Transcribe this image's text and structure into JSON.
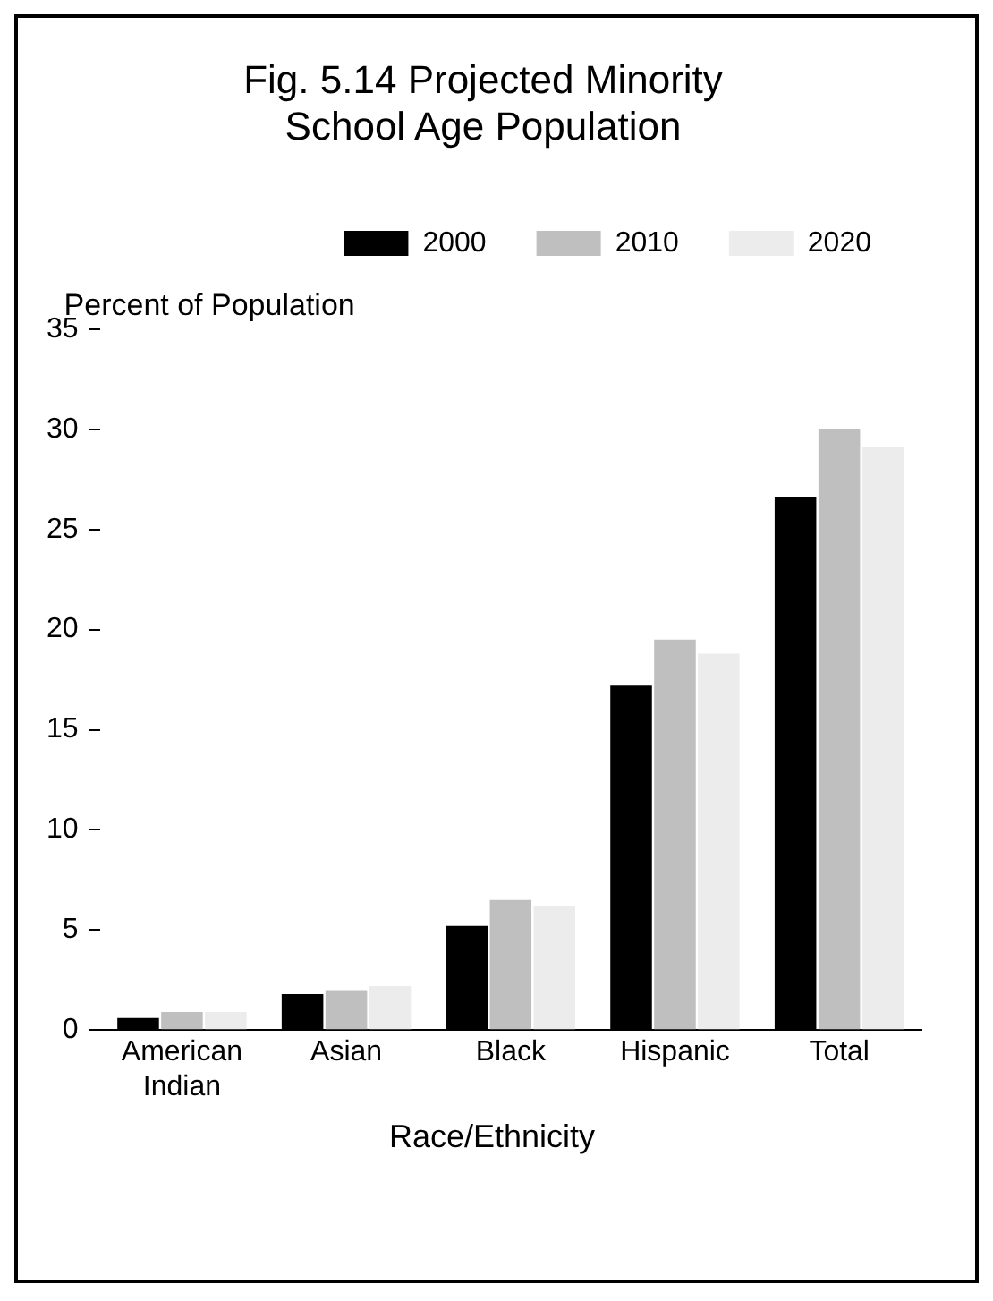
{
  "chart_data": {
    "type": "bar",
    "title": "Fig. 5.14  Projected Minority School Age Population",
    "xlabel": "Race/Ethnicity",
    "ylabel": "Percent of Population",
    "categories": [
      "American Indian",
      "Asian",
      "Black",
      "Hispanic",
      "Total"
    ],
    "series": [
      {
        "name": "2000",
        "color": "#000000",
        "values": [
          0.6,
          1.8,
          5.2,
          17.2,
          26.6
        ]
      },
      {
        "name": "2010",
        "color": "#bfbfbf",
        "values": [
          0.9,
          2.0,
          6.5,
          19.5,
          30.0
        ]
      },
      {
        "name": "2020",
        "color": "#ececec",
        "values": [
          0.9,
          2.2,
          6.2,
          18.8,
          29.1
        ]
      }
    ],
    "ylim": [
      0,
      35
    ],
    "yticks": [
      0,
      5,
      10,
      15,
      20,
      25,
      30,
      35
    ],
    "grid": false,
    "legend": "top"
  }
}
